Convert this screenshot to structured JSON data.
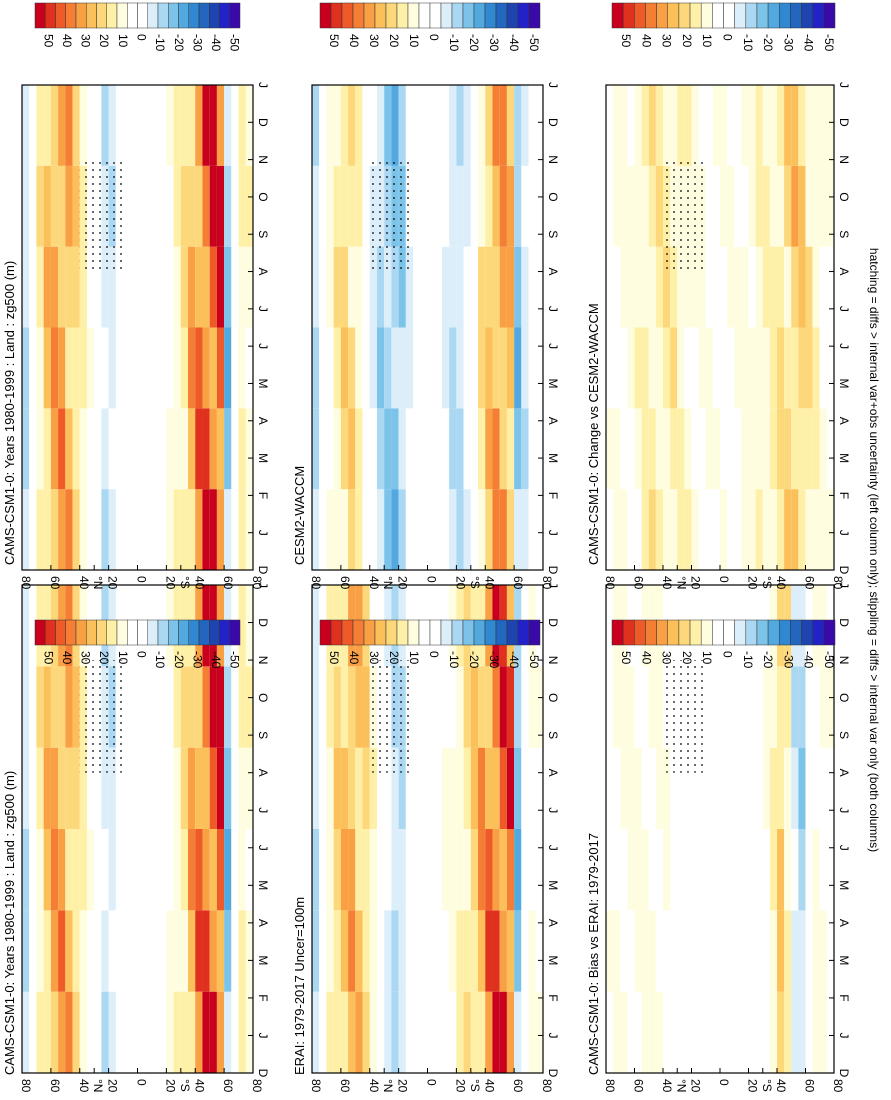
{
  "figure": {
    "orientation": "rotated-90-clockwise",
    "footnote": "hatching = diffs > internal var+obs uncertainty (left column only); stippling = diffs > internal var only (both columns)"
  },
  "chart_data": [
    {
      "type": "heatmap",
      "panel": "left-top",
      "title": "CAMS-CSM1-0: Years 1980-1999 : Land : zg500 (m)",
      "months": [
        "D",
        "J",
        "F",
        "M",
        "A",
        "M",
        "J",
        "J",
        "A",
        "S",
        "O",
        "N",
        "D",
        "J"
      ],
      "lat_ticks": [
        "80",
        "60",
        "40",
        "°N",
        "20",
        "0",
        "20",
        "°S",
        "40",
        "60",
        "80"
      ],
      "colorbar_ticks": [
        "50",
        "40",
        "30",
        "20",
        "10",
        "0",
        "-10",
        "-20",
        "-30",
        "-40",
        "-50"
      ],
      "colorbar_range": [
        -55,
        55
      ],
      "colors": [
        "#c8001e",
        "#e0301e",
        "#ee5a28",
        "#f57e35",
        "#f9a045",
        "#fcc05a",
        "#fdd87a",
        "#fff0a8",
        "#fffde0",
        "#ffffff",
        "#ffffff",
        "#dceefa",
        "#aad8f2",
        "#7cc3ea",
        "#52a9e0",
        "#3088d0",
        "#2266c0",
        "#1e44b0",
        "#2222c8",
        "#3a0aa8"
      ],
      "zonal_profile": [
        [
          80,
          -20
        ],
        [
          65,
          25
        ],
        [
          55,
          40
        ],
        [
          45,
          30
        ],
        [
          35,
          10
        ],
        [
          20,
          -15
        ],
        [
          10,
          0
        ],
        [
          0,
          0
        ],
        [
          -10,
          0
        ],
        [
          -20,
          5
        ],
        [
          -30,
          15
        ],
        [
          -40,
          40
        ],
        [
          -50,
          55
        ],
        [
          -58,
          55
        ],
        [
          -62,
          -25
        ],
        [
          -70,
          15
        ],
        [
          -80,
          10
        ]
      ]
    },
    {
      "type": "heatmap",
      "panel": "left-middle",
      "title": "ERAI: 1979-2017 Uncer=100m",
      "months": [
        "D",
        "J",
        "F",
        "M",
        "A",
        "M",
        "J",
        "J",
        "A",
        "S",
        "O",
        "N",
        "D",
        "J"
      ],
      "lat_ticks": [
        "80",
        "60",
        "40",
        "°N",
        "20",
        "0",
        "20",
        "°S",
        "40",
        "60",
        "80"
      ],
      "colorbar_ticks": [
        "50",
        "40",
        "30",
        "20",
        "10",
        "0",
        "-10",
        "-20",
        "-30",
        "-40",
        "-50"
      ],
      "colorbar_range": [
        -55,
        55
      ],
      "colors": [
        "#c8001e",
        "#e0301e",
        "#ee5a28",
        "#f57e35",
        "#f9a045",
        "#fcc05a",
        "#fdd87a",
        "#fff0a8",
        "#fffde0",
        "#ffffff",
        "#ffffff",
        "#dceefa",
        "#aad8f2",
        "#7cc3ea",
        "#52a9e0",
        "#3088d0",
        "#2266c0",
        "#1e44b0",
        "#2222c8",
        "#3a0aa8"
      ],
      "zonal_profile": [
        [
          80,
          -20
        ],
        [
          65,
          20
        ],
        [
          55,
          35
        ],
        [
          45,
          30
        ],
        [
          35,
          5
        ],
        [
          20,
          -18
        ],
        [
          10,
          0
        ],
        [
          0,
          0
        ],
        [
          -10,
          5
        ],
        [
          -20,
          10
        ],
        [
          -30,
          20
        ],
        [
          -40,
          40
        ],
        [
          -50,
          55
        ],
        [
          -58,
          50
        ],
        [
          -62,
          -25
        ],
        [
          -70,
          10
        ],
        [
          -80,
          5
        ]
      ]
    },
    {
      "type": "heatmap",
      "panel": "left-bottom",
      "title": "CAMS-CSM1-0: Bias vs ERAI: 1979-2017",
      "months": [
        "D",
        "J",
        "F",
        "M",
        "A",
        "M",
        "J",
        "J",
        "A",
        "S",
        "O",
        "N",
        "D",
        "J"
      ],
      "lat_ticks": [
        "80",
        "60",
        "40",
        "°N",
        "20",
        "0",
        "20",
        "°S",
        "40",
        "60",
        "80"
      ],
      "colorbar_ticks": [
        "50",
        "40",
        "30",
        "20",
        "10",
        "0",
        "-10",
        "-20",
        "-30",
        "-40",
        "-50"
      ],
      "colorbar_range": [
        -55,
        55
      ],
      "colors": [
        "#c8001e",
        "#e0301e",
        "#ee5a28",
        "#f57e35",
        "#f9a045",
        "#fcc05a",
        "#fdd87a",
        "#fff0a8",
        "#fffde0",
        "#ffffff",
        "#ffffff",
        "#dceefa",
        "#aad8f2",
        "#7cc3ea",
        "#52a9e0",
        "#3088d0",
        "#2266c0",
        "#1e44b0",
        "#2222c8",
        "#3a0aa8"
      ],
      "zonal_profile": [
        [
          80,
          5
        ],
        [
          60,
          10
        ],
        [
          40,
          8
        ],
        [
          20,
          -5
        ],
        [
          0,
          0
        ],
        [
          -20,
          -5
        ],
        [
          -35,
          10
        ],
        [
          -45,
          30
        ],
        [
          -55,
          -25
        ],
        [
          -65,
          10
        ],
        [
          -80,
          5
        ]
      ]
    },
    {
      "type": "heatmap",
      "panel": "right-top",
      "title": "CAMS-CSM1-0: Years 1980-1999 : Land : zg500 (m)",
      "months": [
        "D",
        "J",
        "F",
        "M",
        "A",
        "M",
        "J",
        "J",
        "A",
        "S",
        "O",
        "N",
        "D",
        "J"
      ],
      "lat_ticks": [
        "80",
        "60",
        "40",
        "°N",
        "20",
        "0",
        "20",
        "°S",
        "40",
        "60",
        "80"
      ],
      "colorbar_ticks": [
        "50",
        "40",
        "30",
        "20",
        "10",
        "0",
        "-10",
        "-20",
        "-30",
        "-40",
        "-50"
      ],
      "colorbar_range": [
        -55,
        55
      ],
      "colors": [
        "#c8001e",
        "#e0301e",
        "#ee5a28",
        "#f57e35",
        "#f9a045",
        "#fcc05a",
        "#fdd87a",
        "#fff0a8",
        "#fffde0",
        "#ffffff",
        "#ffffff",
        "#dceefa",
        "#aad8f2",
        "#7cc3ea",
        "#52a9e0",
        "#3088d0",
        "#2266c0",
        "#1e44b0",
        "#2222c8",
        "#3a0aa8"
      ],
      "zonal_profile": [
        [
          80,
          -20
        ],
        [
          65,
          25
        ],
        [
          55,
          40
        ],
        [
          45,
          30
        ],
        [
          35,
          10
        ],
        [
          20,
          -15
        ],
        [
          10,
          0
        ],
        [
          0,
          0
        ],
        [
          -10,
          0
        ],
        [
          -20,
          5
        ],
        [
          -30,
          15
        ],
        [
          -40,
          40
        ],
        [
          -50,
          55
        ],
        [
          -58,
          55
        ],
        [
          -62,
          -25
        ],
        [
          -70,
          15
        ],
        [
          -80,
          10
        ]
      ]
    },
    {
      "type": "heatmap",
      "panel": "right-middle",
      "title": "CESM2-WACCM",
      "months": [
        "D",
        "J",
        "F",
        "M",
        "A",
        "M",
        "J",
        "J",
        "A",
        "S",
        "O",
        "N",
        "D",
        "J"
      ],
      "lat_ticks": [
        "80",
        "60",
        "40",
        "°N",
        "20",
        "0",
        "20",
        "°S",
        "40",
        "60",
        "80"
      ],
      "colorbar_ticks": [
        "50",
        "40",
        "30",
        "20",
        "10",
        "0",
        "-10",
        "-20",
        "-30",
        "-40",
        "-50"
      ],
      "colorbar_range": [
        -55,
        55
      ],
      "colors": [
        "#c8001e",
        "#e0301e",
        "#ee5a28",
        "#f57e35",
        "#f9a045",
        "#fcc05a",
        "#fdd87a",
        "#fff0a8",
        "#fffde0",
        "#ffffff",
        "#ffffff",
        "#dceefa",
        "#aad8f2",
        "#7cc3ea",
        "#52a9e0",
        "#3088d0",
        "#2266c0",
        "#1e44b0",
        "#2222c8",
        "#3a0aa8"
      ],
      "zonal_profile": [
        [
          80,
          -20
        ],
        [
          65,
          15
        ],
        [
          55,
          25
        ],
        [
          45,
          10
        ],
        [
          35,
          -15
        ],
        [
          20,
          -25
        ],
        [
          10,
          0
        ],
        [
          0,
          0
        ],
        [
          -10,
          -5
        ],
        [
          -20,
          -15
        ],
        [
          -30,
          -5
        ],
        [
          -40,
          25
        ],
        [
          -50,
          40
        ],
        [
          -58,
          30
        ],
        [
          -62,
          -25
        ],
        [
          -70,
          -5
        ],
        [
          -80,
          0
        ]
      ]
    },
    {
      "type": "heatmap",
      "panel": "right-bottom",
      "title": "CAMS-CSM1-0: Change vs CESM2-WACCM",
      "months": [
        "D",
        "J",
        "F",
        "M",
        "A",
        "M",
        "J",
        "J",
        "A",
        "S",
        "O",
        "N",
        "D",
        "J"
      ],
      "lat_ticks": [
        "80",
        "60",
        "40",
        "°N",
        "20",
        "0",
        "20",
        "°S",
        "40",
        "60",
        "80"
      ],
      "colorbar_ticks": [
        "50",
        "40",
        "30",
        "20",
        "10",
        "0",
        "-10",
        "-20",
        "-30",
        "-40",
        "-50"
      ],
      "colorbar_range": [
        -55,
        55
      ],
      "colors": [
        "#c8001e",
        "#e0301e",
        "#ee5a28",
        "#f57e35",
        "#f9a045",
        "#fcc05a",
        "#fdd87a",
        "#fff0a8",
        "#fffde0",
        "#ffffff",
        "#ffffff",
        "#dceefa",
        "#aad8f2",
        "#7cc3ea",
        "#52a9e0",
        "#3088d0",
        "#2266c0",
        "#1e44b0",
        "#2222c8",
        "#3a0aa8"
      ],
      "zonal_profile": [
        [
          80,
          5
        ],
        [
          60,
          10
        ],
        [
          40,
          20
        ],
        [
          20,
          10
        ],
        [
          0,
          5
        ],
        [
          -20,
          10
        ],
        [
          -35,
          15
        ],
        [
          -45,
          20
        ],
        [
          -55,
          30
        ],
        [
          -65,
          15
        ],
        [
          -80,
          5
        ]
      ]
    }
  ]
}
